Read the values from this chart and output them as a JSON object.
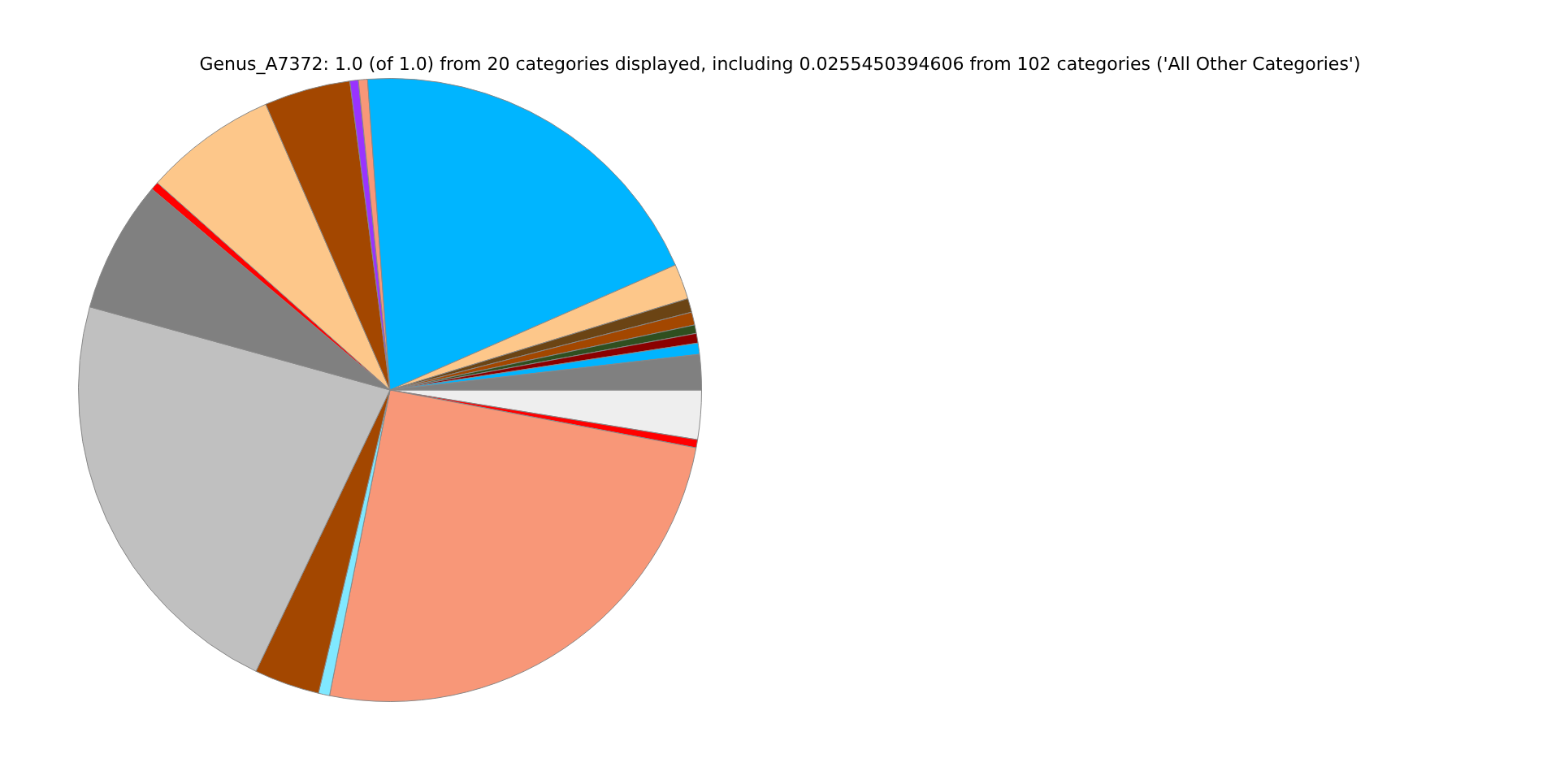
{
  "chart_data": {
    "type": "pie",
    "title": "Genus_A7372: 1.0 (of 1.0) from 20 categories displayed, including 0.0255450394606 from 102 categories ('All Other Categories')",
    "categories": [
      null,
      null,
      null,
      null,
      null,
      null,
      null,
      null,
      null,
      null,
      null,
      null,
      null,
      null,
      null,
      null,
      null,
      null,
      null,
      null
    ],
    "values": [
      1.83,
      0.58,
      0.5,
      0.44,
      0.67,
      0.72,
      1.83,
      19.58,
      0.47,
      0.44,
      4.47,
      6.89,
      0.42,
      6.86,
      22.22,
      3.39,
      0.58,
      25.14,
      0.42,
      2.55
    ],
    "colors": [
      "#808080",
      "#00b4ff",
      "#8b0000",
      "#2f4f1f",
      "#a34700",
      "#6b4414",
      "#fdc78a",
      "#00b5ff",
      "#f89778",
      "#9933ff",
      "#a34700",
      "#fdc78a",
      "#ff0000",
      "#808080",
      "#c0c0c0",
      "#a34700",
      "#80e8ff",
      "#f89778",
      "#ff0000",
      "#eeeeee"
    ],
    "legend": false
  }
}
